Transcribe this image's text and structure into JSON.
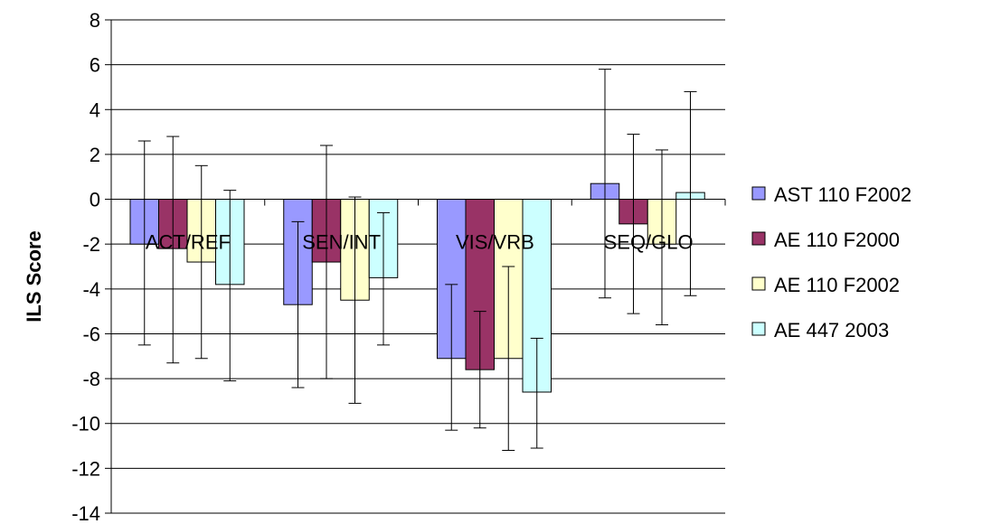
{
  "chart_data": {
    "type": "bar",
    "title": "",
    "xlabel": "",
    "ylabel": "ILS Score",
    "ylim": [
      -14,
      8
    ],
    "ytick_step": 2,
    "grid": "horizontal",
    "legend_position": "right",
    "categories": [
      "ACT/REF",
      "SEN/INT",
      "VIS/VRB",
      "SEQ/GLO"
    ],
    "series": [
      {
        "name": "AST 110 F2002",
        "color": "#9999ff",
        "values": [
          -2.0,
          -4.7,
          -7.1,
          0.7
        ],
        "error_low": [
          -6.5,
          -8.4,
          -10.3,
          -4.4
        ],
        "error_high": [
          2.6,
          -1.0,
          -3.8,
          5.8
        ]
      },
      {
        "name": "AE 110 F2000",
        "color": "#993366",
        "values": [
          -2.2,
          -2.8,
          -7.6,
          -1.1
        ],
        "error_low": [
          -7.3,
          -8.0,
          -10.2,
          -5.1
        ],
        "error_high": [
          2.8,
          2.4,
          -5.0,
          2.9
        ]
      },
      {
        "name": "AE 110 F2002",
        "color": "#ffffcc",
        "values": [
          -2.8,
          -4.5,
          -7.1,
          -2.0
        ],
        "error_low": [
          -7.1,
          -9.1,
          -11.2,
          -5.6
        ],
        "error_high": [
          1.5,
          0.1,
          -3.0,
          2.2
        ]
      },
      {
        "name": "AE 447 2003",
        "color": "#ccffff",
        "values": [
          -3.8,
          -3.5,
          -8.6,
          0.3
        ],
        "error_low": [
          -8.1,
          -6.5,
          -11.1,
          -4.3
        ],
        "error_high": [
          0.4,
          -0.6,
          -6.2,
          4.8
        ]
      }
    ]
  }
}
